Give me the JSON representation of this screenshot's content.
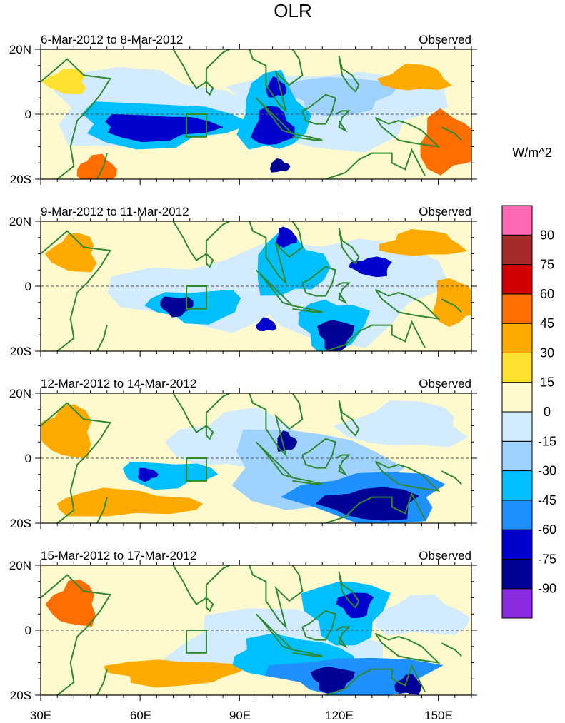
{
  "chart_data": {
    "type": "heatmap",
    "title": "OLR",
    "variable": "Outgoing longwave radiation anomaly",
    "units": "W/m^2",
    "xlim": [
      30,
      160
    ],
    "ylim": [
      -20,
      20
    ],
    "x_ticks": [
      30,
      60,
      90,
      120,
      150
    ],
    "x_tick_labels": [
      "30E",
      "60E",
      "90E",
      "120E",
      "150E"
    ],
    "y_ticks": [
      20,
      0,
      -20
    ],
    "y_tick_labels": [
      "20N",
      "0",
      "20S"
    ],
    "colorbar": {
      "levels": [
        -90,
        -75,
        -60,
        -45,
        -30,
        -15,
        0,
        15,
        30,
        45,
        60,
        75,
        90
      ],
      "labels": [
        "90",
        "75",
        "60",
        "45",
        "30",
        "15",
        "0",
        "-15",
        "-30",
        "-45",
        "-60",
        "-75",
        "-90"
      ],
      "colors_bottom_to_top": [
        "#8a2be2",
        "#000096",
        "#0000cd",
        "#1e90ff",
        "#00bfff",
        "#a0d2ff",
        "#d2ebff",
        "#fffacd",
        "#ffe132",
        "#ffaa00",
        "#ff6e00",
        "#d20000",
        "#a52a2a",
        "#ff69b4"
      ]
    },
    "box_region": {
      "lon": [
        74,
        80
      ],
      "lat": [
        -7,
        0
      ]
    },
    "panels": [
      {
        "date_range": "6-Mar-2012 to 8-Mar-2012",
        "label": "Observed",
        "features": [
          {
            "lon": 65,
            "lat": -4,
            "rx": 17,
            "ry": 4,
            "value": -75
          },
          {
            "lon": 100,
            "lat": -4,
            "rx": 6,
            "ry": 6,
            "value": -75
          },
          {
            "lon": 101,
            "lat": 8,
            "rx": 3,
            "ry": 3,
            "value": -75
          },
          {
            "lon": 102,
            "lat": -16,
            "rx": 3,
            "ry": 2,
            "value": -90
          },
          {
            "lon": 65,
            "lat": -3,
            "rx": 24,
            "ry": 7,
            "value": -45
          },
          {
            "lon": 100,
            "lat": 0,
            "rx": 10,
            "ry": 12,
            "value": -45
          },
          {
            "lon": 120,
            "lat": 6,
            "rx": 16,
            "ry": 6,
            "value": -30
          },
          {
            "lon": 60,
            "lat": 2,
            "rx": 28,
            "ry": 12,
            "value": -15
          },
          {
            "lon": 120,
            "lat": 2,
            "rx": 30,
            "ry": 12,
            "value": -15
          },
          {
            "lon": 153,
            "lat": -9,
            "rx": 9,
            "ry": 9,
            "value": 45
          },
          {
            "lon": 143,
            "lat": 11,
            "rx": 10,
            "ry": 4,
            "value": 30
          },
          {
            "lon": 47,
            "lat": -17,
            "rx": 6,
            "ry": 4,
            "value": 45
          },
          {
            "lon": 38,
            "lat": 10,
            "rx": 6,
            "ry": 4,
            "value": 15
          }
        ]
      },
      {
        "date_range": "9-Mar-2012 to 11-Mar-2012",
        "label": "Observed",
        "features": [
          {
            "lon": 71,
            "lat": -6,
            "rx": 5,
            "ry": 3,
            "value": -90
          },
          {
            "lon": 119,
            "lat": -15,
            "rx": 5,
            "ry": 5,
            "value": -90
          },
          {
            "lon": 104,
            "lat": 15,
            "rx": 3,
            "ry": 3,
            "value": -75
          },
          {
            "lon": 98,
            "lat": -12,
            "rx": 3,
            "ry": 2,
            "value": -75
          },
          {
            "lon": 130,
            "lat": 6,
            "rx": 6,
            "ry": 3,
            "value": -75
          },
          {
            "lon": 77,
            "lat": -6,
            "rx": 14,
            "ry": 5,
            "value": -45
          },
          {
            "lon": 105,
            "lat": 6,
            "rx": 11,
            "ry": 9,
            "value": -45
          },
          {
            "lon": 118,
            "lat": -12,
            "rx": 10,
            "ry": 8,
            "value": -45
          },
          {
            "lon": 80,
            "lat": -2,
            "rx": 28,
            "ry": 10,
            "value": -15
          },
          {
            "lon": 120,
            "lat": 0,
            "rx": 30,
            "ry": 16,
            "value": -15
          },
          {
            "lon": 145,
            "lat": 13,
            "rx": 12,
            "ry": 4,
            "value": 30
          },
          {
            "lon": 40,
            "lat": 10,
            "rx": 7,
            "ry": 6,
            "value": 30
          },
          {
            "lon": 155,
            "lat": -5,
            "rx": 7,
            "ry": 7,
            "value": 30
          }
        ]
      },
      {
        "date_range": "12-Mar-2012 to 14-Mar-2012",
        "label": "Observed",
        "features": [
          {
            "lon": 130,
            "lat": -14,
            "rx": 14,
            "ry": 5,
            "value": -90
          },
          {
            "lon": 104,
            "lat": 5,
            "rx": 3,
            "ry": 3,
            "value": -90
          },
          {
            "lon": 62,
            "lat": -5,
            "rx": 3,
            "ry": 2,
            "value": -75
          },
          {
            "lon": 130,
            "lat": -12,
            "rx": 22,
            "ry": 8,
            "value": -60
          },
          {
            "lon": 68,
            "lat": -5,
            "rx": 14,
            "ry": 4,
            "value": -45
          },
          {
            "lon": 110,
            "lat": -3,
            "rx": 24,
            "ry": 12,
            "value": -30
          },
          {
            "lon": 90,
            "lat": 5,
            "rx": 20,
            "ry": 9,
            "value": -15
          },
          {
            "lon": 55,
            "lat": -14,
            "rx": 22,
            "ry": 4,
            "value": 30
          },
          {
            "lon": 38,
            "lat": 8,
            "rx": 8,
            "ry": 8,
            "value": 30
          },
          {
            "lon": 140,
            "lat": 10,
            "rx": 18,
            "ry": 7,
            "value": -15
          }
        ]
      },
      {
        "date_range": "15-Mar-2012 to 17-Mar-2012",
        "label": "Observed",
        "features": [
          {
            "lon": 118,
            "lat": -15,
            "rx": 6,
            "ry": 4,
            "value": -90
          },
          {
            "lon": 141,
            "lat": -17,
            "rx": 4,
            "ry": 3,
            "value": -90
          },
          {
            "lon": 125,
            "lat": 8,
            "rx": 5,
            "ry": 4,
            "value": -75
          },
          {
            "lon": 125,
            "lat": -14,
            "rx": 24,
            "ry": 6,
            "value": -60
          },
          {
            "lon": 105,
            "lat": -8,
            "rx": 18,
            "ry": 6,
            "value": -45
          },
          {
            "lon": 122,
            "lat": 6,
            "rx": 12,
            "ry": 10,
            "value": -45
          },
          {
            "lon": 100,
            "lat": -4,
            "rx": 30,
            "ry": 10,
            "value": -15
          },
          {
            "lon": 40,
            "lat": 8,
            "rx": 7,
            "ry": 7,
            "value": 45
          },
          {
            "lon": 70,
            "lat": -13,
            "rx": 20,
            "ry": 4,
            "value": 30
          },
          {
            "lon": 145,
            "lat": 4,
            "rx": 14,
            "ry": 6,
            "value": -15
          }
        ]
      }
    ]
  }
}
